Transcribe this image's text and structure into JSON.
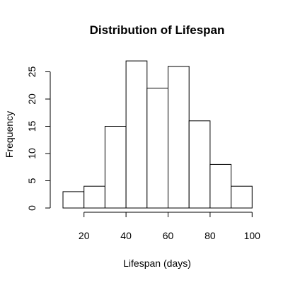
{
  "chart_data": {
    "type": "bar",
    "title": "Distribution of Lifespan",
    "xlabel": "Lifespan (days)",
    "ylabel": "Frequency",
    "bins": [
      {
        "start": 10,
        "end": 20,
        "count": 3
      },
      {
        "start": 20,
        "end": 30,
        "count": 4
      },
      {
        "start": 30,
        "end": 40,
        "count": 15
      },
      {
        "start": 40,
        "end": 50,
        "count": 27
      },
      {
        "start": 50,
        "end": 60,
        "count": 22
      },
      {
        "start": 60,
        "end": 70,
        "count": 26
      },
      {
        "start": 70,
        "end": 80,
        "count": 16
      },
      {
        "start": 80,
        "end": 90,
        "count": 8
      },
      {
        "start": 90,
        "end": 100,
        "count": 4
      }
    ],
    "xticks": [
      20,
      40,
      60,
      80,
      100
    ],
    "yticks": [
      0,
      5,
      10,
      15,
      20,
      25
    ],
    "xlim": [
      10,
      100
    ],
    "ylim": [
      0,
      27
    ],
    "grid": false,
    "legend": "none",
    "bar_fill": "#ffffff",
    "bar_stroke": "#000000"
  }
}
